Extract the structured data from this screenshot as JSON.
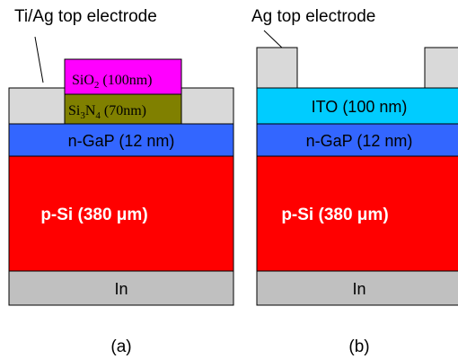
{
  "diagram_a": {
    "electrode_label": "Ti/Ag top electrode",
    "sio2": {
      "main": "SiO",
      "sub": "2",
      "rest": " (100nm)"
    },
    "si3n4": {
      "p1": "Si",
      "s1": "3",
      "p2": "N",
      "s2": "4",
      "rest": " (70nm)"
    },
    "ngap_label": "n-GaP (12 nm)",
    "psi_label": "p-Si (380 μm)",
    "in_label": "In",
    "caption": "(a)"
  },
  "diagram_b": {
    "electrode_label": "Ag top electrode",
    "ito_label": "ITO (100 nm)",
    "ngap_label": "n-GaP (12 nm)",
    "psi_label": "p-Si (380 μm)",
    "in_label": "In",
    "caption": "(b)"
  },
  "colors": {
    "electrode": "#d9d9d9",
    "sio2": "#ff00ff",
    "si3n4": "#808000",
    "ngap": "#3366ff",
    "psi": "#ff0000",
    "indium": "#c0c0c0",
    "ito": "#00ccff"
  }
}
